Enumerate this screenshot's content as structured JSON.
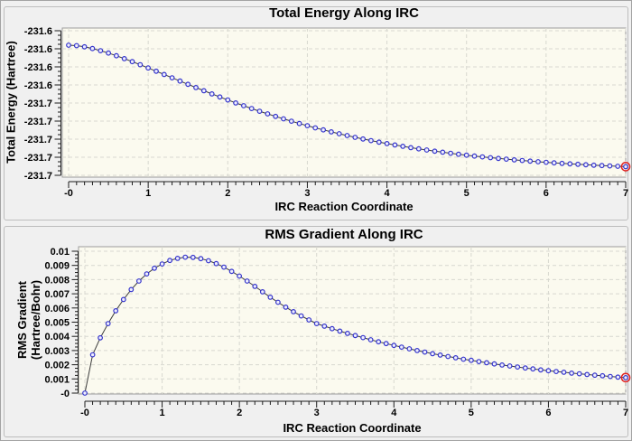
{
  "colors": {
    "window_bg": "#f0f0f0",
    "panel_border": "#bdbdbd",
    "plot_bg": "#fbfaef",
    "plot_border": "#9c9c9c",
    "grid": "#d8d8d0",
    "axis": "#1c1c1c",
    "line": "#3c3c3c",
    "marker_stroke": "#3434cc",
    "marker_fill": "#eeeefc",
    "highlight": "#e02020",
    "text": "#000000"
  },
  "chart_data": [
    {
      "type": "line",
      "title": "Total Energy Along IRC",
      "xlabel": "IRC Reaction Coordinate",
      "ylabel": "Total Energy (Hartree)",
      "ylabel_lines": [
        "Total Energy (Hartree)"
      ],
      "xlim": [
        0,
        7
      ],
      "ylim": [
        -231.7,
        -231.6
      ],
      "x_tick_labels": [
        "-0",
        "1",
        "2",
        "3",
        "4",
        "5",
        "6",
        "7"
      ],
      "y_tick_labels": [
        "-231.6",
        "-231.6",
        "-231.6",
        "-231.6",
        "-231.7",
        "-231.7",
        "-231.7",
        "-231.7",
        "-231.7"
      ],
      "grid": true,
      "legend": false,
      "highlighted_point_index": 70,
      "x": [
        0,
        0.1,
        0.2,
        0.3,
        0.4,
        0.5,
        0.6,
        0.7,
        0.8,
        0.9,
        1,
        1.1,
        1.2,
        1.3,
        1.4,
        1.5,
        1.6,
        1.7,
        1.8,
        1.9,
        2,
        2.1,
        2.2,
        2.3,
        2.4,
        2.5,
        2.6,
        2.7,
        2.8,
        2.9,
        3,
        3.1,
        3.2,
        3.3,
        3.4,
        3.5,
        3.6,
        3.7,
        3.8,
        3.9,
        4,
        4.1,
        4.2,
        4.3,
        4.4,
        4.5,
        4.6,
        4.7,
        4.8,
        4.9,
        5,
        5.1,
        5.2,
        5.3,
        5.4,
        5.5,
        5.6,
        5.7,
        5.8,
        5.9,
        6,
        6.1,
        6.2,
        6.3,
        6.4,
        6.5,
        6.6,
        6.7,
        6.8,
        6.9,
        7
      ],
      "y": [
        -231.61,
        -231.61031,
        -231.61115,
        -231.61233,
        -231.61379,
        -231.61546,
        -231.61731,
        -231.61929,
        -231.62137,
        -231.62353,
        -231.62574,
        -231.628,
        -231.63027,
        -231.63254,
        -231.63482,
        -231.63707,
        -231.63931,
        -231.64151,
        -231.64368,
        -231.6458,
        -231.64788,
        -231.64991,
        -231.65189,
        -231.65381,
        -231.65568,
        -231.65749,
        -231.65925,
        -231.66094,
        -231.66258,
        -231.66417,
        -231.6657,
        -231.66717,
        -231.66858,
        -231.66995,
        -231.67125,
        -231.67251,
        -231.67372,
        -231.67487,
        -231.67598,
        -231.67704,
        -231.67806,
        -231.67903,
        -231.67996,
        -231.68085,
        -231.6817,
        -231.68252,
        -231.68329,
        -231.68403,
        -231.68474,
        -231.68541,
        -231.68606,
        -231.68667,
        -231.68725,
        -231.68781,
        -231.68834,
        -231.68884,
        -231.68932,
        -231.68978,
        -231.69021,
        -231.69062,
        -231.69102,
        -231.69139,
        -231.69175,
        -231.69208,
        -231.6924,
        -231.69271,
        -231.693,
        -231.69327,
        -231.69353,
        -231.69378,
        -231.69402
      ]
    },
    {
      "type": "line",
      "title": "RMS Gradient Along IRC",
      "xlabel": "IRC Reaction Coordinate",
      "ylabel": "RMS Gradient (Hartree/Bohr)",
      "ylabel_lines": [
        "RMS Gradient",
        "(Hartree/Bohr)"
      ],
      "xlim": [
        0,
        7
      ],
      "ylim": [
        0,
        0.01
      ],
      "x_tick_labels": [
        "-0",
        "1",
        "2",
        "3",
        "4",
        "5",
        "6",
        "7"
      ],
      "y_tick_labels": [
        "0.01",
        "0.009",
        "0.008",
        "0.007",
        "0.006",
        "0.005",
        "0.004",
        "0.003",
        "0.002",
        "0.001",
        "-0"
      ],
      "grid": true,
      "legend": false,
      "highlighted_point_index": 70,
      "x": [
        0,
        0.1,
        0.2,
        0.3,
        0.4,
        0.5,
        0.6,
        0.7,
        0.8,
        0.9,
        1,
        1.1,
        1.2,
        1.3,
        1.4,
        1.5,
        1.6,
        1.7,
        1.8,
        1.9,
        2,
        2.1,
        2.2,
        2.3,
        2.4,
        2.5,
        2.6,
        2.7,
        2.8,
        2.9,
        3,
        3.1,
        3.2,
        3.3,
        3.4,
        3.5,
        3.6,
        3.7,
        3.8,
        3.9,
        4,
        4.1,
        4.2,
        4.3,
        4.4,
        4.5,
        4.6,
        4.7,
        4.8,
        4.9,
        5,
        5.1,
        5.2,
        5.3,
        5.4,
        5.5,
        5.6,
        5.7,
        5.8,
        5.9,
        6,
        6.1,
        6.2,
        6.3,
        6.4,
        6.5,
        6.6,
        6.7,
        6.8,
        6.9,
        7
      ],
      "y": [
        0,
        0.0027,
        0.0039,
        0.0049,
        0.0058,
        0.0066,
        0.0073,
        0.0079,
        0.0084,
        0.0088,
        0.0091,
        0.00935,
        0.0095,
        0.00958,
        0.00957,
        0.00948,
        0.00933,
        0.00913,
        0.00888,
        0.00858,
        0.00825,
        0.0079,
        0.00752,
        0.00714,
        0.00676,
        0.0064,
        0.00606,
        0.00574,
        0.00544,
        0.00516,
        0.0049,
        0.00472,
        0.00454,
        0.00437,
        0.00421,
        0.00406,
        0.00391,
        0.00376,
        0.00362,
        0.00349,
        0.00336,
        0.00324,
        0.00312,
        0.003,
        0.00289,
        0.00278,
        0.00268,
        0.00258,
        0.00249,
        0.00239,
        0.00231,
        0.00222,
        0.00214,
        0.00206,
        0.00198,
        0.00191,
        0.00184,
        0.00177,
        0.00171,
        0.00164,
        0.00158,
        0.00152,
        0.00147,
        0.00141,
        0.00136,
        0.00131,
        0.00126,
        0.00122,
        0.00117,
        0.00113,
        0.00109
      ]
    }
  ]
}
